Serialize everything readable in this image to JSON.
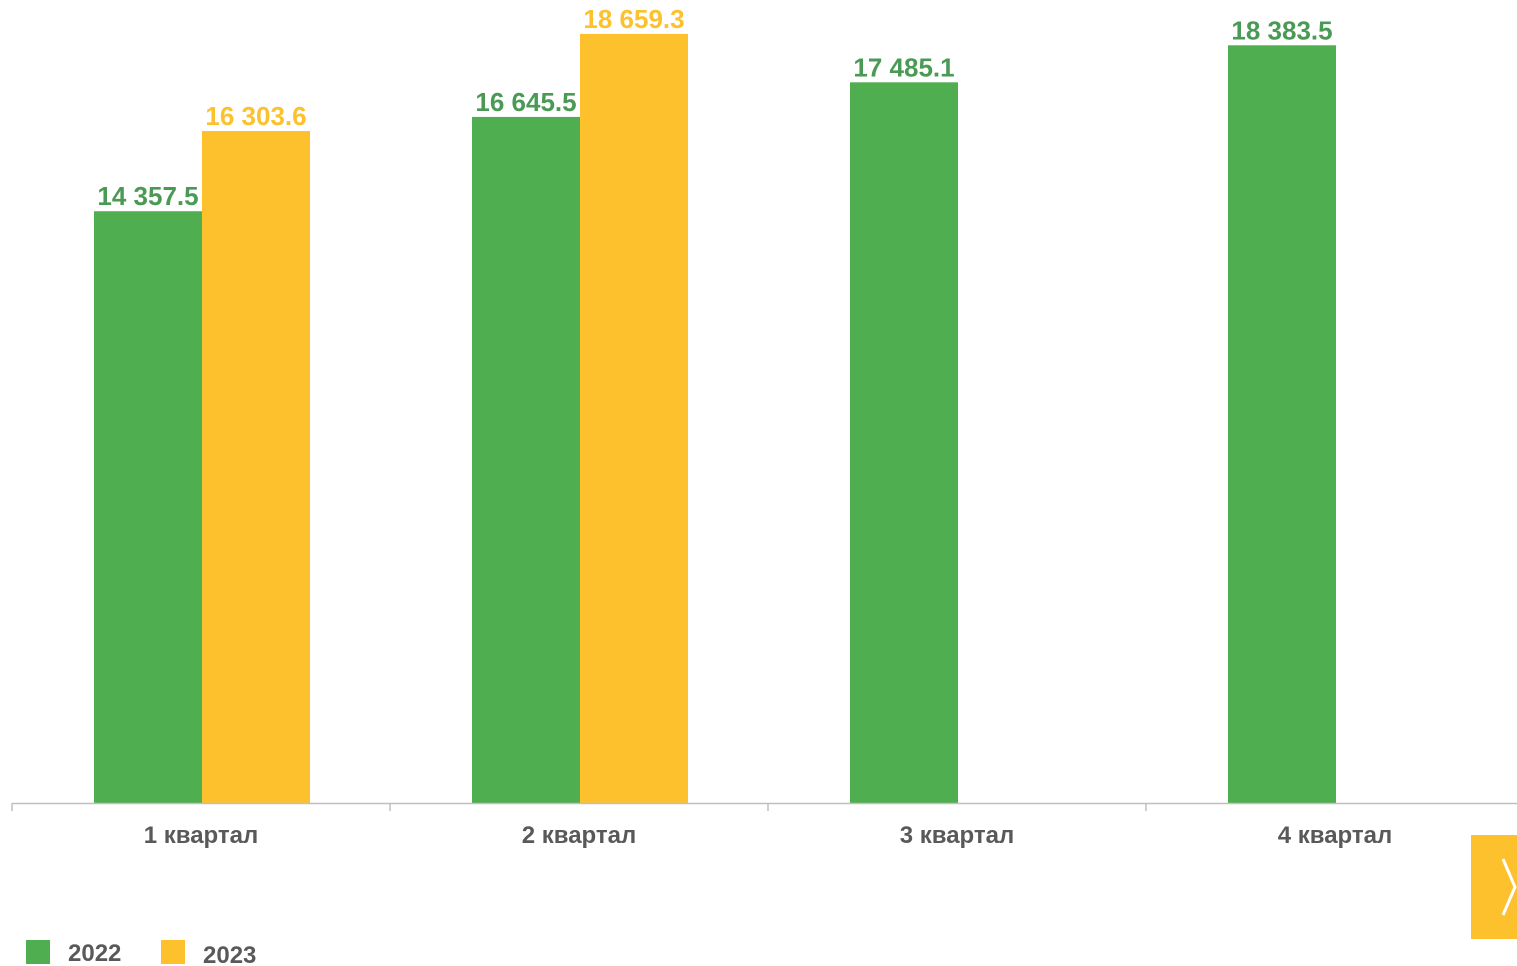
{
  "chart_data": {
    "type": "bar",
    "categories": [
      "1 квартал",
      "2 квартал",
      "3 квартал",
      "4 квартал"
    ],
    "series": [
      {
        "name": "2022",
        "color": "#4fae4f",
        "label_color": "#4a9a55",
        "values": [
          14357.5,
          16645.5,
          17485.1,
          18383.5
        ],
        "labels": [
          "14 357.5",
          "16 645.5",
          "17 485.1",
          "18 383.5"
        ]
      },
      {
        "name": "2023",
        "color": "#fcc12d",
        "label_color": "#fcc12d",
        "values": [
          16303.6,
          18659.3,
          null,
          null
        ],
        "labels": [
          "16 303.6",
          "18 659.3",
          "",
          ""
        ]
      }
    ],
    "ylim": [
      0,
      18900
    ],
    "grid": false,
    "legend_position": "bottom-left",
    "axis_color": "#bfbfbf",
    "tick_label_color": "#595959"
  },
  "controls": {
    "next_icon": "chevron-right-icon"
  }
}
